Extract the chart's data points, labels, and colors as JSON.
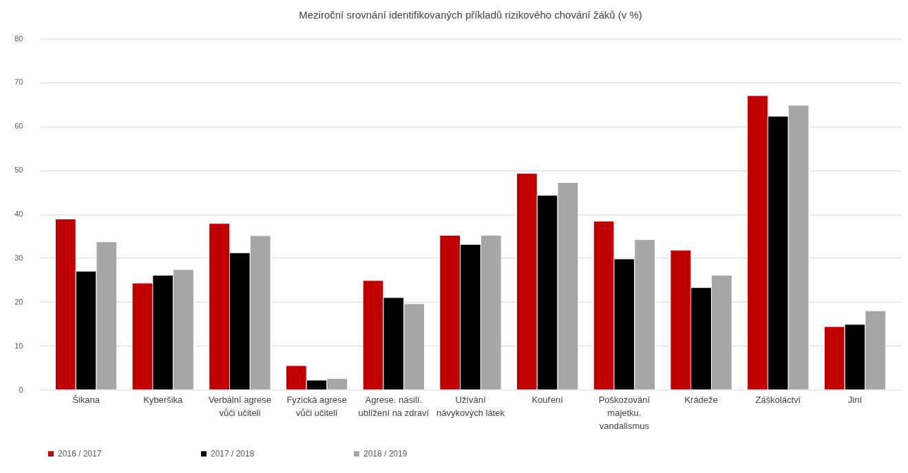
{
  "chart_data": {
    "type": "bar",
    "title": "Meziroční srovnání identifikovaných příkladů rizikového chování žáků (v %)",
    "categories": [
      "Šikana",
      "Kyberšika",
      "Verbální agrese\nvůči učiteli",
      "Fyzická agrese\nvůči učiteli",
      "Agrese. násilí.\nublížení na zdraví",
      "Užívání\nnávykových látek",
      "Kouření",
      "Poškozování\nmajetku.\nvandalismus",
      "Krádeže",
      "Záškoláctví",
      "Jiní"
    ],
    "series": [
      {
        "name": "2016 / 2017",
        "color": "#c00000",
        "values": [
          38.9,
          24.3,
          37.9,
          5.5,
          24.9,
          35.2,
          49.3,
          38.4,
          31.8,
          67.0,
          14.4
        ]
      },
      {
        "name": "2017 / 2018",
        "color": "#000000",
        "values": [
          27.0,
          26.1,
          31.2,
          2.2,
          21.0,
          33.1,
          44.3,
          29.8,
          23.3,
          62.3,
          14.9
        ]
      },
      {
        "name": "2018 / 2019",
        "color": "#a6a6a6",
        "values": [
          33.7,
          27.4,
          35.1,
          2.6,
          19.6,
          35.2,
          47.2,
          34.2,
          26.1,
          64.8,
          18.0
        ]
      }
    ],
    "ylim": [
      0,
      80
    ],
    "yticks": [
      0,
      10,
      20,
      30,
      40,
      50,
      60,
      70,
      80
    ],
    "grid": "y",
    "legend": "bottom"
  }
}
